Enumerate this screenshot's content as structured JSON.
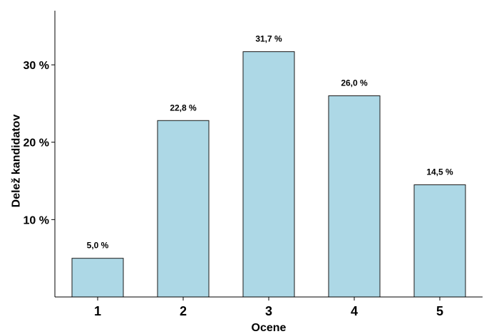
{
  "chart_data": {
    "type": "bar",
    "categories": [
      "1",
      "2",
      "3",
      "4",
      "5"
    ],
    "values": [
      5.0,
      22.8,
      31.7,
      26.0,
      14.5
    ],
    "data_labels": [
      "5,0 %",
      "22,8 %",
      "31,7 %",
      "26,0 %",
      "14,5 %"
    ],
    "xlabel": "Ocene",
    "ylabel": "Delež kandidatov",
    "ylim": [
      0,
      37
    ],
    "yticks": [
      10,
      20,
      30
    ],
    "ytick_labels": [
      "10 %",
      "20 %",
      "30 %"
    ],
    "grid": false,
    "bar_color": "#add8e6",
    "bar_edge_color": "#1a1a1a"
  }
}
